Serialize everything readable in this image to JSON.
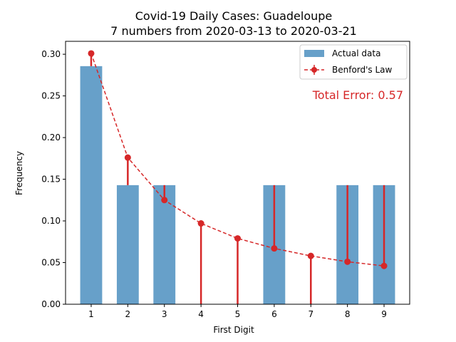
{
  "chart_data": {
    "type": "bar",
    "title": "Covid-19 Daily Cases: Guadeloupe",
    "subtitle": "7 numbers from 2020-03-13 to 2020-03-21",
    "xlabel": "First Digit",
    "ylabel": "Frequency",
    "categories": [
      "1",
      "2",
      "3",
      "4",
      "5",
      "6",
      "7",
      "8",
      "9"
    ],
    "x": [
      1,
      2,
      3,
      4,
      5,
      6,
      7,
      8,
      9
    ],
    "xlim": [
      0.3,
      9.7
    ],
    "ylim": [
      0,
      0.3155
    ],
    "yticks": [
      0.0,
      0.05,
      0.1,
      0.15,
      0.2,
      0.25,
      0.3
    ],
    "ytick_labels": [
      "0.00",
      "0.05",
      "0.10",
      "0.15",
      "0.20",
      "0.25",
      "0.30"
    ],
    "grid": false,
    "legend_position": "top-right",
    "series": [
      {
        "name": "Actual data",
        "type": "bar",
        "color": "#67a0c9",
        "values": [
          0.2857,
          0.1429,
          0.1429,
          0,
          0,
          0.1429,
          0,
          0.1429,
          0.1429
        ]
      },
      {
        "name": "Benford's Law",
        "type": "line",
        "linestyle": "dashed",
        "marker": "circle",
        "color": "#d62728",
        "values": [
          0.301,
          0.176,
          0.125,
          0.097,
          0.079,
          0.067,
          0.058,
          0.051,
          0.046
        ]
      }
    ],
    "annotation": {
      "text": "Total Error: 0.57",
      "color": "#d62728",
      "position": "top-right"
    }
  }
}
